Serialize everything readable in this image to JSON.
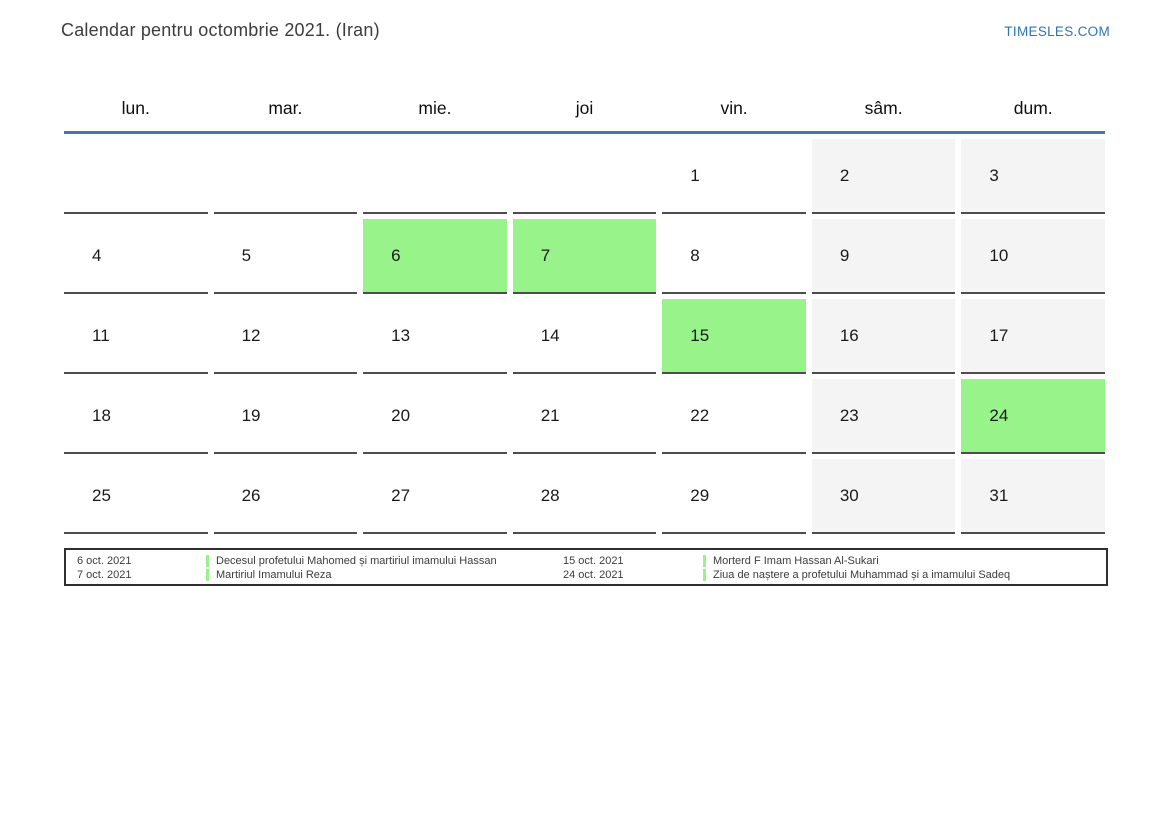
{
  "page": {
    "title": "Calendar pentru octombrie 2021. (Iran)",
    "brand": "TIMESLES.COM"
  },
  "weekdays": [
    "lun.",
    "mar.",
    "mie.",
    "joi",
    "vin.",
    "sâm.",
    "dum."
  ],
  "weeks": [
    [
      {
        "day": "",
        "type": "normal"
      },
      {
        "day": "",
        "type": "normal"
      },
      {
        "day": "",
        "type": "normal"
      },
      {
        "day": "",
        "type": "normal"
      },
      {
        "day": "1",
        "type": "normal"
      },
      {
        "day": "2",
        "type": "weekend"
      },
      {
        "day": "3",
        "type": "weekend"
      }
    ],
    [
      {
        "day": "4",
        "type": "normal"
      },
      {
        "day": "5",
        "type": "normal"
      },
      {
        "day": "6",
        "type": "holiday"
      },
      {
        "day": "7",
        "type": "holiday"
      },
      {
        "day": "8",
        "type": "normal"
      },
      {
        "day": "9",
        "type": "weekend"
      },
      {
        "day": "10",
        "type": "weekend"
      }
    ],
    [
      {
        "day": "11",
        "type": "normal"
      },
      {
        "day": "12",
        "type": "normal"
      },
      {
        "day": "13",
        "type": "normal"
      },
      {
        "day": "14",
        "type": "normal"
      },
      {
        "day": "15",
        "type": "holiday"
      },
      {
        "day": "16",
        "type": "weekend"
      },
      {
        "day": "17",
        "type": "weekend"
      }
    ],
    [
      {
        "day": "18",
        "type": "normal"
      },
      {
        "day": "19",
        "type": "normal"
      },
      {
        "day": "20",
        "type": "normal"
      },
      {
        "day": "21",
        "type": "normal"
      },
      {
        "day": "22",
        "type": "normal"
      },
      {
        "day": "23",
        "type": "weekend"
      },
      {
        "day": "24",
        "type": "holiday"
      }
    ],
    [
      {
        "day": "25",
        "type": "normal"
      },
      {
        "day": "26",
        "type": "normal"
      },
      {
        "day": "27",
        "type": "normal"
      },
      {
        "day": "28",
        "type": "normal"
      },
      {
        "day": "29",
        "type": "normal"
      },
      {
        "day": "30",
        "type": "weekend"
      },
      {
        "day": "31",
        "type": "weekend"
      }
    ]
  ],
  "legend": {
    "groups": [
      {
        "entries": [
          {
            "date": "6 oct. 2021",
            "label": "Decesul profetului Mahomed și martiriul imamului Hassan"
          },
          {
            "date": "7 oct. 2021",
            "label": "Martiriul Imamului Reza"
          }
        ]
      },
      {
        "entries": [
          {
            "date": "15 oct. 2021",
            "label": "Morterd F Imam Hassan Al-Sukari"
          },
          {
            "date": "24 oct. 2021",
            "label": "Ziua de naștere a profetului Muhammad și a imamului Sadeq"
          }
        ]
      }
    ]
  },
  "colors": {
    "holiday": "#98f38b",
    "weekend": "#f4f4f4",
    "divider": "#51749c",
    "brand": "#2e74b5",
    "cell_border": "#4d4d4d"
  }
}
